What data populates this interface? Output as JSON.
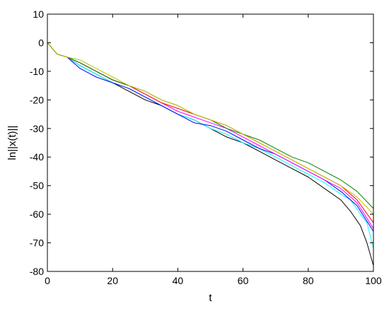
{
  "chart_data": {
    "type": "line",
    "title": "",
    "xlabel": "t",
    "ylabel": "ln||x(t)||",
    "xlim": [
      0,
      100
    ],
    "ylim": [
      -80,
      10
    ],
    "xticks": [
      0,
      20,
      40,
      60,
      80,
      100
    ],
    "yticks": [
      10,
      0,
      -10,
      -20,
      -30,
      -40,
      -50,
      -60,
      -70,
      -80
    ],
    "grid": false,
    "legend": "none",
    "box": true,
    "series": [
      {
        "color": "#000000",
        "x": [
          0,
          3,
          6,
          10,
          15,
          20,
          25,
          30,
          35,
          40,
          45,
          50,
          55,
          60,
          65,
          70,
          75,
          80,
          85,
          90,
          93,
          96,
          98,
          100
        ],
        "y": [
          0,
          -4,
          -5,
          -8,
          -11,
          -14,
          -17,
          -20,
          -22,
          -25,
          -27,
          -30,
          -33,
          -35,
          -38,
          -41,
          -44,
          -47,
          -51,
          -55,
          -59,
          -64,
          -70,
          -78
        ]
      },
      {
        "color": "#00ffff",
        "x": [
          0,
          3,
          6,
          10,
          15,
          20,
          25,
          30,
          35,
          40,
          45,
          50,
          55,
          60,
          65,
          70,
          75,
          80,
          85,
          90,
          93,
          96,
          98,
          100
        ],
        "y": [
          0,
          -4,
          -5,
          -8,
          -11,
          -14,
          -16,
          -19,
          -22,
          -25,
          -27,
          -30,
          -32,
          -35,
          -37,
          -40,
          -43,
          -46,
          -49,
          -53,
          -55,
          -60,
          -63,
          -72
        ]
      },
      {
        "color": "#0000ff",
        "x": [
          0,
          3,
          6,
          10,
          15,
          20,
          25,
          30,
          35,
          40,
          45,
          50,
          55,
          60,
          65,
          70,
          75,
          80,
          85,
          90,
          95,
          100
        ],
        "y": [
          0,
          -4,
          -5,
          -9,
          -12,
          -14,
          -16,
          -19,
          -22,
          -25,
          -28,
          -29,
          -31,
          -34,
          -37,
          -39,
          -42,
          -45,
          -48,
          -52,
          -57,
          -66
        ]
      },
      {
        "color": "#ff00ff",
        "x": [
          0,
          3,
          6,
          10,
          15,
          20,
          25,
          30,
          35,
          40,
          45,
          50,
          55,
          60,
          65,
          70,
          75,
          80,
          85,
          90,
          95,
          100
        ],
        "y": [
          0,
          -4,
          -5,
          -7,
          -10,
          -13,
          -15,
          -18,
          -21,
          -24,
          -26,
          -28,
          -30,
          -33,
          -36,
          -39,
          -42,
          -45,
          -48,
          -51,
          -56,
          -65
        ]
      },
      {
        "color": "#ff0000",
        "x": [
          0,
          3,
          6,
          10,
          15,
          20,
          25,
          30,
          35,
          40,
          45,
          50,
          55,
          60,
          65,
          70,
          75,
          80,
          85,
          90,
          95,
          100
        ],
        "y": [
          0,
          -4,
          -5,
          -7,
          -10,
          -13,
          -15,
          -18,
          -21,
          -23,
          -25,
          -27,
          -29,
          -32,
          -35,
          -38,
          -41,
          -44,
          -47,
          -50,
          -55,
          -63
        ]
      },
      {
        "color": "#008000",
        "x": [
          0,
          3,
          6,
          10,
          15,
          20,
          25,
          30,
          35,
          40,
          45,
          50,
          55,
          60,
          65,
          70,
          75,
          80,
          85,
          90,
          95,
          100
        ],
        "y": [
          0,
          -4,
          -5,
          -7,
          -10,
          -13,
          -15,
          -17,
          -20,
          -22,
          -25,
          -27,
          -30,
          -32,
          -34,
          -37,
          -40,
          -42,
          -45,
          -48,
          -52,
          -58
        ]
      },
      {
        "color": "#c0c000",
        "x": [
          0,
          3,
          6,
          10,
          15,
          20,
          25,
          30,
          35,
          40,
          45,
          50,
          55,
          60,
          65,
          70,
          75,
          80,
          85,
          90,
          95,
          100
        ],
        "y": [
          0,
          -4,
          -5,
          -6,
          -9,
          -12,
          -15,
          -17,
          -20,
          -22,
          -25,
          -27,
          -29,
          -32,
          -35,
          -38,
          -41,
          -44,
          -47,
          -50,
          -54,
          -60
        ]
      }
    ]
  }
}
